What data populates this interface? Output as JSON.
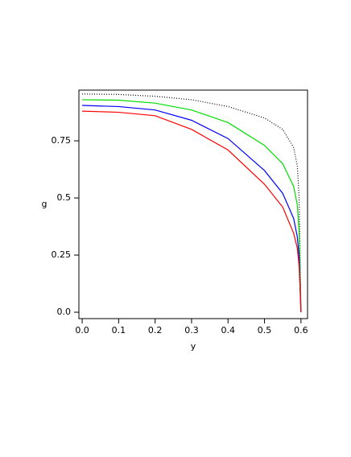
{
  "chart_data": {
    "type": "line",
    "x_label": "y",
    "y_label": "g",
    "x": [
      0,
      0.1,
      0.2,
      0.3,
      0.4,
      0.5,
      0.55,
      0.58,
      0.59,
      0.595,
      0.6
    ],
    "series": [
      {
        "color": "#000000",
        "dash": "1,2",
        "values": [
          0.955,
          0.953,
          0.945,
          0.93,
          0.9,
          0.85,
          0.8,
          0.72,
          0.64,
          0.5,
          0
        ]
      },
      {
        "color": "#00dd00",
        "values": [
          0.93,
          0.928,
          0.915,
          0.885,
          0.83,
          0.73,
          0.65,
          0.55,
          0.47,
          0.35,
          0
        ]
      },
      {
        "color": "#0000ff",
        "values": [
          0.905,
          0.9,
          0.885,
          0.84,
          0.76,
          0.62,
          0.52,
          0.41,
          0.33,
          0.24,
          0
        ]
      },
      {
        "color": "#ff0000",
        "values": [
          0.88,
          0.875,
          0.86,
          0.8,
          0.71,
          0.56,
          0.46,
          0.345,
          0.28,
          0.2,
          0
        ]
      }
    ],
    "xlim": [
      -0.009,
      0.618
    ],
    "ylim": [
      -0.028,
      0.972
    ],
    "xticks": [
      {
        "value": 0,
        "label": "0.0"
      },
      0.1,
      0.2,
      0.3,
      0.4,
      0.5,
      0.6
    ],
    "yticks": [
      {
        "value": 0,
        "label": "0.0"
      },
      0.25,
      0.5,
      0.75
    ]
  }
}
